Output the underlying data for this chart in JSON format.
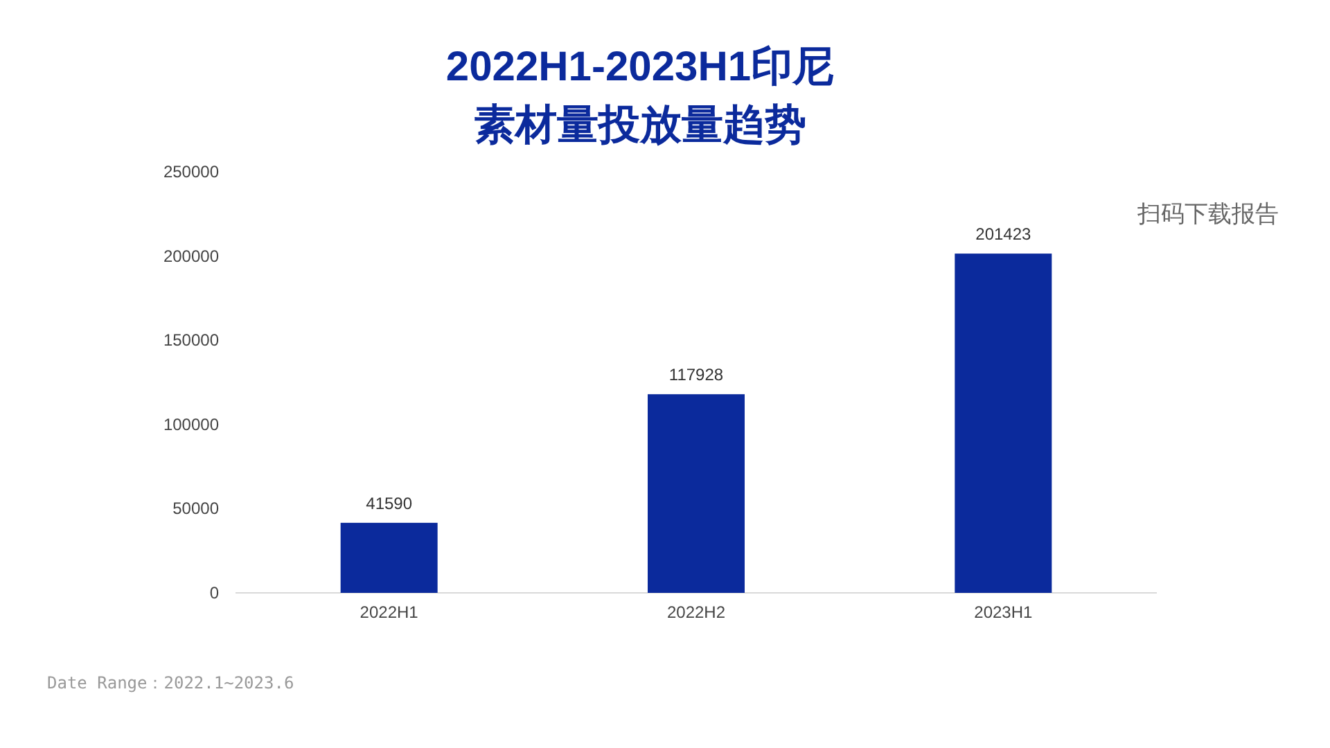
{
  "chart_data": {
    "type": "bar",
    "title": "2022H1-2023H1印尼",
    "subtitle": "素材量投放量趋势",
    "categories": [
      "2022H1",
      "2022H2",
      "2023H1"
    ],
    "values": [
      41590,
      117928,
      201423
    ],
    "color": "#0b2a9c",
    "ylim": [
      0,
      250000
    ],
    "yticks": [
      0,
      50000,
      100000,
      150000,
      200000,
      250000
    ],
    "data_labels": true,
    "annotations": [
      "扫码下载报告",
      "Date Range：2022.1~2023.6"
    ]
  }
}
